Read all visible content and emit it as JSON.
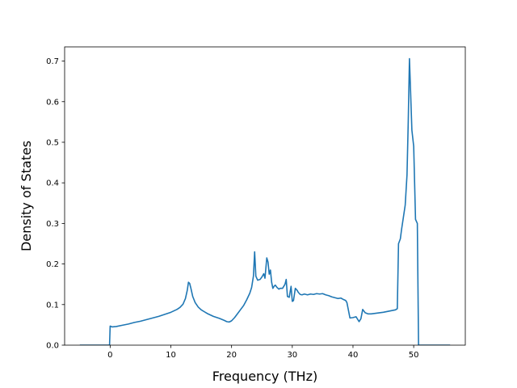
{
  "chart_data": {
    "type": "line",
    "title": "",
    "xlabel": "Frequency (THz)",
    "ylabel": "Density of States",
    "xlim": [
      -7.5,
      58.5
    ],
    "ylim": [
      0.0,
      0.735
    ],
    "xticks": [
      0,
      10,
      20,
      30,
      40,
      50
    ],
    "yticks": [
      0.0,
      0.1,
      0.2,
      0.3,
      0.4,
      0.5,
      0.6,
      0.7
    ],
    "xtick_labels": [
      "0",
      "10",
      "20",
      "30",
      "40",
      "50"
    ],
    "ytick_labels": [
      "0.0",
      "0.1",
      "0.2",
      "0.3",
      "0.4",
      "0.5",
      "0.6",
      "0.7"
    ],
    "grid": false,
    "legend": "none",
    "line_color": "#1f77b4",
    "series": [
      {
        "x": [
          -5.0,
          -0.1,
          0.0,
          0.3,
          1.0,
          2.0,
          3.0,
          4.0,
          5.0,
          6.0,
          7.0,
          8.0,
          9.0,
          10.0,
          11.0,
          11.5,
          12.0,
          12.4,
          12.7,
          12.9,
          13.1,
          13.3,
          13.6,
          14.0,
          14.5,
          15.0,
          16.0,
          17.0,
          18.0,
          18.8,
          19.2,
          19.6,
          20.0,
          20.5,
          21.0,
          21.5,
          22.0,
          22.5,
          23.0,
          23.3,
          23.6,
          23.8,
          24.0,
          24.3,
          24.7,
          25.0,
          25.3,
          25.5,
          25.8,
          26.0,
          26.2,
          26.4,
          26.6,
          26.8,
          27.0,
          27.2,
          27.5,
          27.8,
          28.0,
          28.4,
          28.8,
          29.0,
          29.2,
          29.5,
          29.8,
          30.0,
          30.2,
          30.5,
          30.8,
          31.0,
          31.3,
          31.6,
          32.0,
          32.5,
          33.0,
          33.5,
          34.0,
          34.5,
          35.0,
          35.5,
          36.0,
          36.5,
          37.0,
          37.5,
          38.0,
          38.5,
          38.8,
          39.0,
          39.5,
          40.0,
          40.5,
          41.0,
          41.3,
          41.6,
          42.0,
          42.5,
          43.0,
          44.0,
          45.0,
          46.0,
          47.0,
          47.3,
          47.5,
          47.8,
          48.0,
          48.3,
          48.6,
          48.9,
          49.1,
          49.3,
          49.5,
          49.7,
          50.0,
          50.3,
          50.6,
          50.8,
          51.0,
          56.0
        ],
        "y": [
          0.0,
          0.0,
          0.047,
          0.045,
          0.046,
          0.049,
          0.052,
          0.056,
          0.059,
          0.063,
          0.067,
          0.071,
          0.076,
          0.081,
          0.088,
          0.093,
          0.101,
          0.115,
          0.135,
          0.155,
          0.152,
          0.14,
          0.12,
          0.105,
          0.094,
          0.087,
          0.078,
          0.071,
          0.066,
          0.061,
          0.058,
          0.057,
          0.06,
          0.068,
          0.078,
          0.088,
          0.098,
          0.112,
          0.128,
          0.142,
          0.17,
          0.23,
          0.17,
          0.16,
          0.162,
          0.168,
          0.176,
          0.165,
          0.215,
          0.205,
          0.175,
          0.185,
          0.155,
          0.14,
          0.145,
          0.148,
          0.142,
          0.138,
          0.14,
          0.14,
          0.15,
          0.162,
          0.12,
          0.118,
          0.145,
          0.108,
          0.11,
          0.14,
          0.135,
          0.13,
          0.125,
          0.124,
          0.126,
          0.124,
          0.126,
          0.125,
          0.127,
          0.126,
          0.127,
          0.124,
          0.122,
          0.119,
          0.117,
          0.115,
          0.116,
          0.112,
          0.11,
          0.105,
          0.067,
          0.068,
          0.07,
          0.058,
          0.065,
          0.088,
          0.08,
          0.077,
          0.077,
          0.079,
          0.081,
          0.084,
          0.087,
          0.09,
          0.25,
          0.262,
          0.285,
          0.315,
          0.345,
          0.42,
          0.55,
          0.706,
          0.62,
          0.53,
          0.49,
          0.31,
          0.3,
          0.0,
          0.0,
          0.0
        ]
      }
    ]
  }
}
